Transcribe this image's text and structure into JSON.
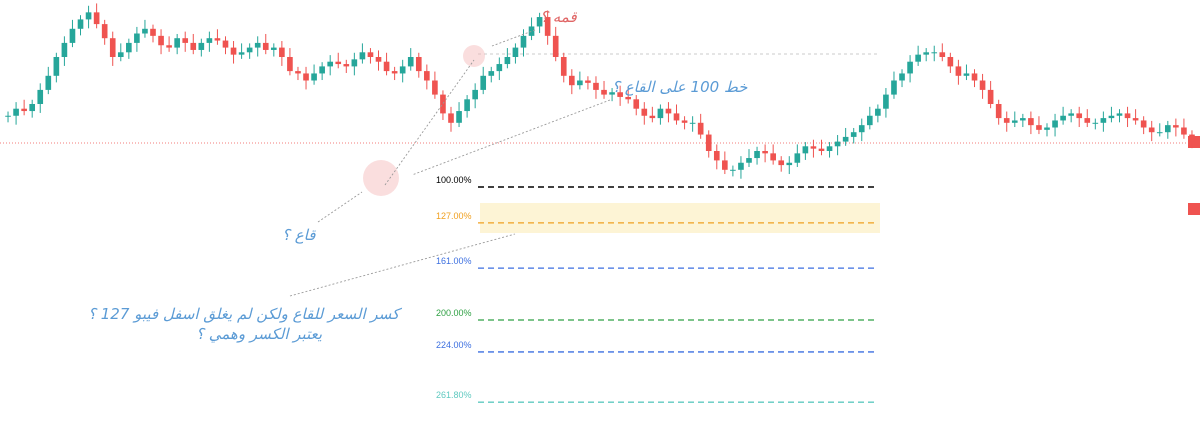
{
  "chart_data": {
    "type": "candlestick",
    "description_free": true,
    "price_range": [
      0,
      100
    ],
    "series": [
      {
        "close_path": [
          55,
          58,
          57,
          60,
          66,
          72,
          80,
          86,
          92,
          96,
          99,
          94,
          88,
          80,
          82,
          86,
          90,
          92,
          89,
          85,
          84,
          88,
          86,
          83,
          86,
          88,
          87,
          84,
          81,
          82,
          84,
          86,
          83,
          84,
          80,
          74,
          73,
          70,
          73,
          76,
          78,
          77,
          76,
          79,
          82,
          80,
          78,
          74,
          73,
          76,
          80,
          74,
          70,
          64,
          56,
          52,
          57,
          62,
          66,
          72,
          74,
          77,
          80,
          84,
          89,
          93,
          97,
          89,
          80,
          72,
          68,
          70,
          69,
          66,
          64,
          65,
          63,
          62,
          58,
          55,
          54,
          58,
          56,
          53,
          52,
          52,
          47,
          40,
          36,
          32,
          32,
          35,
          37,
          40,
          39,
          36,
          34,
          35,
          39,
          42,
          41,
          40,
          42,
          44,
          46,
          48,
          51,
          55,
          58,
          64,
          70,
          73,
          78,
          81,
          82,
          82,
          80,
          76,
          72,
          73,
          70,
          66,
          60,
          54,
          52,
          53,
          54,
          51,
          49,
          50,
          53,
          55,
          56,
          54,
          52,
          52,
          54,
          55,
          56,
          54,
          53,
          50,
          48,
          48,
          51,
          50,
          47,
          44
        ]
      }
    ],
    "fib_levels": [
      {
        "label": "100.00%",
        "value": 100.0,
        "color": "#000000"
      },
      {
        "label": "127.00%",
        "value": 127.0,
        "color": "#f0a020"
      },
      {
        "label": "161.00%",
        "value": 161.0,
        "color": "#3c6fe0"
      },
      {
        "label": "200.00%",
        "value": 200.0,
        "color": "#2ea043"
      },
      {
        "label": "224.00%",
        "value": 224.0,
        "color": "#3c6fe0"
      },
      {
        "label": "261.80%",
        "value": 261.8,
        "color": "#5fc9c0"
      }
    ],
    "colors": {
      "up": "#26a69a",
      "down": "#ef5350",
      "zone": "#fdf3d0",
      "price_line": "#ef5350",
      "annotation": "#5b9bd5",
      "annotation_top": "#e06666"
    }
  },
  "annotations": {
    "peak": "قمه ؟",
    "line100": "خط  100 على القاع ؟",
    "trough": "قاع ؟",
    "break_line1": "كسر السعر للقاع ولكن لم يغلق اسفل فيبو 127 ؟",
    "break_line2": "يعتبر الكسر وهمي ؟"
  }
}
